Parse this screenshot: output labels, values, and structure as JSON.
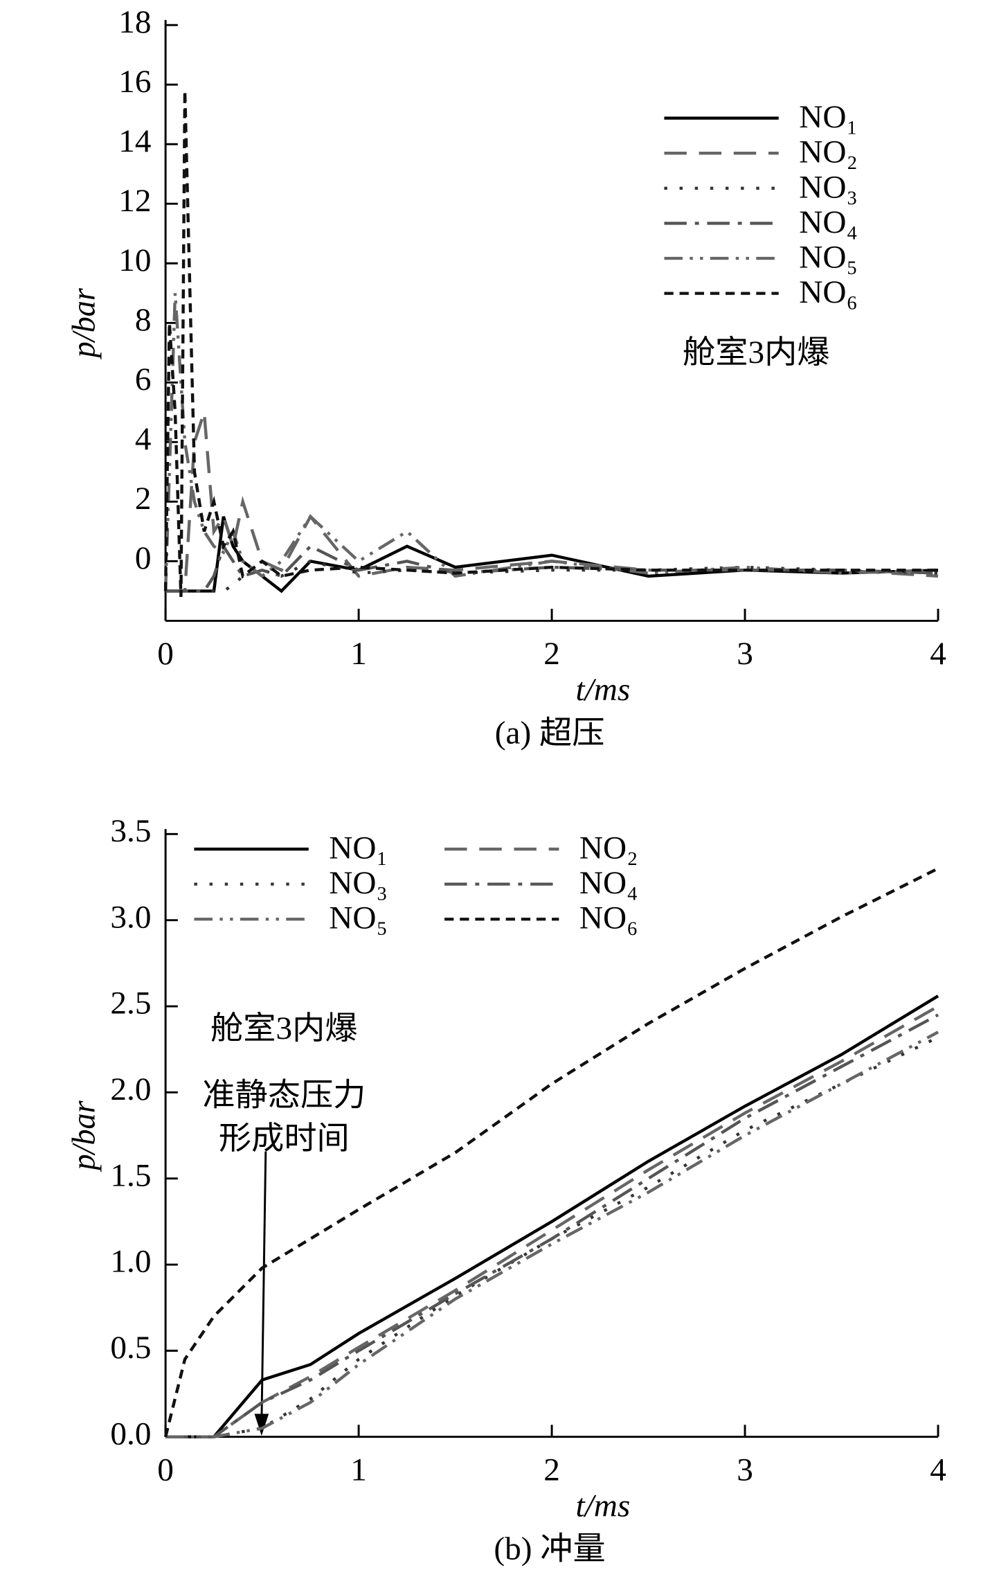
{
  "chart_data": [
    {
      "type": "line",
      "caption": "(a) 超压",
      "xlabel": "t/ms",
      "ylabel": "p/bar",
      "annotations": [
        "舱室3内爆"
      ],
      "x": [
        0,
        0.02,
        0.05,
        0.08,
        0.1,
        0.15,
        0.2,
        0.25,
        0.3,
        0.35,
        0.4,
        0.5,
        0.6,
        0.75,
        1.0,
        1.25,
        1.5,
        2.0,
        2.5,
        3.0,
        3.5,
        4.0
      ],
      "xlim": [
        0,
        4
      ],
      "xticks": [
        0,
        1,
        2,
        3,
        4
      ],
      "ylim": [
        -2,
        18
      ],
      "yticks": [
        0,
        2,
        4,
        6,
        8,
        10,
        12,
        14,
        16,
        18
      ],
      "legend": "upper right",
      "legend_columns": 1,
      "series": [
        {
          "name": "NO₁",
          "color": "#000000",
          "linestyle": "solid",
          "values": [
            -1,
            -1,
            -1,
            -1,
            -1,
            -1,
            -1,
            -1,
            1.5,
            0.5,
            0,
            -0.5,
            -1,
            0,
            -0.3,
            0.5,
            -0.2,
            0.2,
            -0.5,
            -0.3,
            -0.4,
            -0.3
          ]
        },
        {
          "name": "NO₂",
          "color": "#666666",
          "linestyle": "dashed",
          "values": [
            -1,
            -1,
            -1,
            -1,
            -1,
            4,
            5,
            1,
            1.5,
            0.5,
            2,
            0,
            -0.3,
            1.5,
            -0.5,
            -0.2,
            -0.3,
            0,
            -0.3,
            -0.3,
            -0.3,
            -0.5
          ]
        },
        {
          "name": "NO₃",
          "color": "#333333",
          "linestyle": "dotted",
          "values": [
            -1,
            -1,
            -1,
            -1,
            -1,
            -1,
            -1,
            -1,
            -1,
            -0.8,
            -0.5,
            -0.3,
            -0.5,
            0,
            -0.4,
            -0.3,
            -0.4,
            -0.3,
            -0.3,
            -0.2,
            -0.3,
            -0.4
          ]
        },
        {
          "name": "NO₄",
          "color": "#555555",
          "linestyle": "dashdot",
          "values": [
            -1,
            -1,
            -1,
            -1,
            -1,
            -1,
            -1,
            -0.5,
            0.5,
            0,
            -0.5,
            -0.3,
            -0.5,
            0.5,
            -0.3,
            0,
            -0.4,
            -0.2,
            -0.3,
            -0.3,
            -0.3,
            -0.4
          ]
        },
        {
          "name": "NO₅",
          "color": "#666666",
          "linestyle": "dashdotdot",
          "values": [
            -1,
            3,
            9,
            6,
            4,
            2,
            1,
            0.5,
            0.3,
            1,
            0,
            -0.5,
            0,
            1.5,
            0,
            1,
            -0.5,
            0,
            -0.4,
            -0.2,
            -0.4,
            -0.3
          ]
        },
        {
          "name": "NO₆",
          "color": "#111111",
          "linestyle": "shortdash",
          "values": [
            -1,
            8,
            5,
            -1.2,
            15.8,
            3,
            1,
            2,
            0.5,
            1,
            -0.5,
            0,
            -0.5,
            -0.3,
            -0.2,
            -0.3,
            -0.4,
            -0.2,
            -0.3,
            -0.3,
            -0.3,
            -0.3
          ]
        }
      ]
    },
    {
      "type": "line",
      "caption": "(b) 冲量",
      "xlabel": "t/ms",
      "ylabel": "p/bar",
      "annotations": [
        "舱室3内爆",
        "准静态压力",
        "形成时间"
      ],
      "x": [
        0,
        0.1,
        0.25,
        0.5,
        0.75,
        1,
        1.5,
        2,
        2.5,
        3,
        3.5,
        4
      ],
      "xlim": [
        0,
        4
      ],
      "xticks": [
        0,
        1,
        2,
        3,
        4
      ],
      "ylim": [
        0,
        3.5
      ],
      "yticks": [
        {
          "value": 0,
          "label": "0.0"
        },
        {
          "value": 0.5,
          "label": "0.5"
        },
        {
          "value": 1,
          "label": "1.0"
        },
        {
          "value": 1.5,
          "label": "1.5"
        },
        {
          "value": 2,
          "label": "2.0"
        },
        {
          "value": 2.5,
          "label": "2.5"
        },
        {
          "value": 3,
          "label": "3.0"
        },
        {
          "value": 3.5,
          "label": "3.5"
        }
      ],
      "legend": "upper left",
      "legend_columns": 2,
      "series": [
        {
          "name": "NO₁",
          "color": "#000000",
          "linestyle": "solid",
          "values": [
            0,
            0,
            0,
            0.33,
            0.42,
            0.6,
            0.92,
            1.25,
            1.6,
            1.92,
            2.22,
            2.56
          ]
        },
        {
          "name": "NO₂",
          "color": "#666666",
          "linestyle": "dashed",
          "values": [
            0,
            0,
            0,
            0.2,
            0.35,
            0.52,
            0.85,
            1.2,
            1.55,
            1.88,
            2.18,
            2.5
          ]
        },
        {
          "name": "NO₃",
          "color": "#333333",
          "linestyle": "dotted",
          "values": [
            0,
            0,
            0,
            0.05,
            0.22,
            0.45,
            0.82,
            1.15,
            1.45,
            1.78,
            2.05,
            2.32
          ]
        },
        {
          "name": "NO₄",
          "color": "#555555",
          "linestyle": "dashdot",
          "values": [
            0,
            0,
            0,
            0.2,
            0.33,
            0.5,
            0.83,
            1.15,
            1.5,
            1.85,
            2.15,
            2.45
          ]
        },
        {
          "name": "NO₅",
          "color": "#666666",
          "linestyle": "dashdotdot",
          "values": [
            0,
            0,
            0,
            0.05,
            0.2,
            0.42,
            0.8,
            1.12,
            1.42,
            1.75,
            2.05,
            2.35
          ]
        },
        {
          "name": "NO₆",
          "color": "#111111",
          "linestyle": "shortdash",
          "values": [
            0,
            0.45,
            0.7,
            0.98,
            1.15,
            1.32,
            1.65,
            2.05,
            2.4,
            2.72,
            3.02,
            3.3
          ]
        }
      ]
    }
  ]
}
